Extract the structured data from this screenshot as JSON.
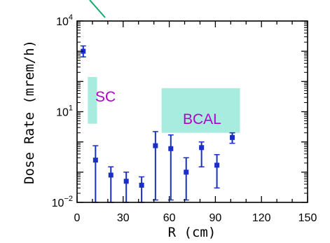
{
  "chart_data": {
    "type": "scatter",
    "xlabel": "R (cm)",
    "ylabel": "Dose Rate (mrem/h)",
    "xlim": [
      0,
      150
    ],
    "ylim": [
      0.01,
      10000
    ],
    "yscale": "log",
    "xticks": [
      0,
      30,
      60,
      90,
      120,
      150
    ],
    "yticks": [
      {
        "value": 0.01,
        "base": "10",
        "exp": "−2"
      },
      {
        "value": 10,
        "base": "10",
        "exp": "1"
      },
      {
        "value": 10000,
        "base": "10",
        "exp": "4"
      }
    ],
    "marker_color": "#1a2ec8",
    "frame_color": "#000000",
    "points": [
      {
        "x": 4,
        "y": 1000,
        "ylo": 650,
        "yhi": 1500
      },
      {
        "x": 12,
        "y": 0.25,
        "ylo": 0.01,
        "yhi": 0.75
      },
      {
        "x": 22,
        "y": 0.08,
        "ylo": 0.01,
        "yhi": 0.15
      },
      {
        "x": 32,
        "y": 0.05,
        "ylo": 0.01,
        "yhi": 0.1
      },
      {
        "x": 42,
        "y": 0.037,
        "ylo": 0.01,
        "yhi": 0.07
      },
      {
        "x": 51,
        "y": 0.75,
        "ylo": 0.012,
        "yhi": 2.2
      },
      {
        "x": 61,
        "y": 0.6,
        "ylo": 0.012,
        "yhi": 1.7
      },
      {
        "x": 71,
        "y": 0.1,
        "ylo": 0.012,
        "yhi": 0.3
      },
      {
        "x": 81,
        "y": 0.65,
        "ylo": 0.15,
        "yhi": 1.0
      },
      {
        "x": 91,
        "y": 0.17,
        "ylo": 0.03,
        "yhi": 0.38
      },
      {
        "x": 101,
        "y": 1.4,
        "ylo": 0.9,
        "yhi": 2.0
      }
    ],
    "annotations": [
      {
        "text": "SC",
        "color": "#a8ecdf",
        "x0": 7,
        "x1": 13,
        "y0": 4,
        "y1": 140
      },
      {
        "text": "BCAL",
        "color": "#a8ecdf",
        "x0": 55,
        "x1": 106,
        "y0": 2,
        "y1": 60
      }
    ],
    "callout_line_color": "#17a86a"
  }
}
